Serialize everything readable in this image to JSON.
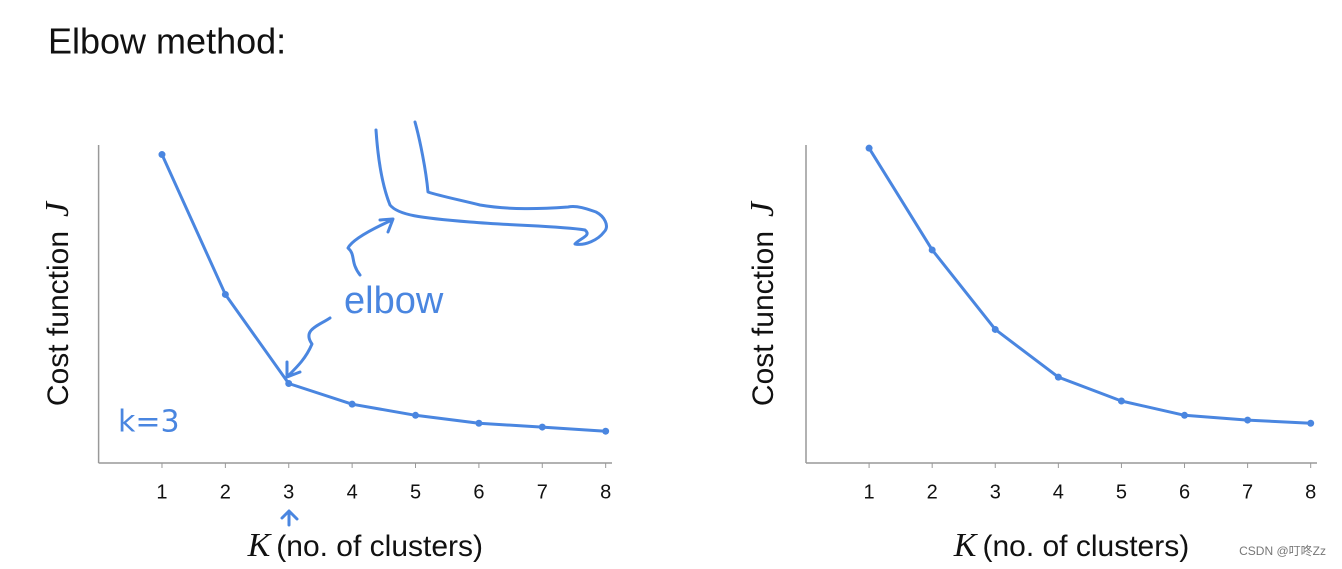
{
  "title": "Elbow method:",
  "chart_data": [
    {
      "type": "line",
      "ylabel": "Cost function",
      "ylabel_var": "J",
      "xlabel_var": "K",
      "xlabel": "(no. of clusters)",
      "x": [
        1,
        2,
        3,
        4,
        5,
        6,
        7,
        8
      ],
      "xlim": [
        0,
        8.1
      ],
      "xticks": [
        1,
        2,
        3,
        4,
        5,
        6,
        7,
        8
      ],
      "ylim": [
        0,
        100
      ],
      "series": [
        {
          "color": "#4a86e0",
          "values": [
            97,
            53,
            25,
            18.5,
            15,
            12.5,
            11.3,
            10
          ]
        }
      ],
      "annotations": [
        "elbow",
        "k=3"
      ]
    },
    {
      "type": "line",
      "ylabel": "Cost function",
      "ylabel_var": "J",
      "xlabel_var": "K",
      "xlabel": "(no. of clusters)",
      "x": [
        1,
        2,
        3,
        4,
        5,
        6,
        7,
        8
      ],
      "xlim": [
        0,
        8.1
      ],
      "xticks": [
        1,
        2,
        3,
        4,
        5,
        6,
        7,
        8
      ],
      "ylim": [
        0,
        100
      ],
      "series": [
        {
          "color": "#4a86e0",
          "values": [
            99,
            67,
            42,
            27,
            19.5,
            15,
            13.5,
            12.5
          ]
        }
      ]
    }
  ],
  "watermark": "CSDN @叮咚Zz"
}
